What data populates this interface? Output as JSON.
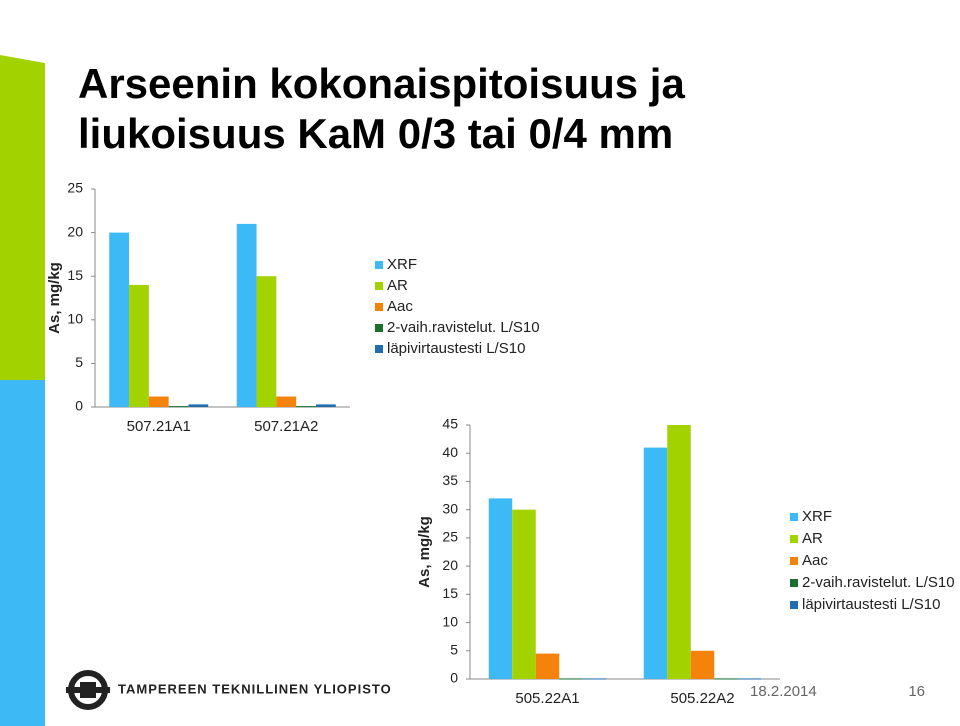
{
  "slide": {
    "title": [
      "Arseenin kokonaispitoisuus ja",
      "liukoisuus KaM 0/3 tai 0/4 mm"
    ],
    "logo_text": "TAMPEREEN TEKNILLINEN YLIOPISTO",
    "date": "18.2.2014",
    "page_number": "16"
  },
  "chart_data": [
    {
      "type": "bar",
      "y_label": "As, mg/kg",
      "categories": [
        "507.21A1",
        "507.21A2"
      ],
      "ylim": [
        0,
        25
      ],
      "yticks": [
        0,
        5,
        10,
        15,
        20,
        25
      ],
      "legend": "right",
      "series": [
        {
          "name": "XRF",
          "color": "#3dbaf5",
          "values": [
            20,
            21
          ]
        },
        {
          "name": "AR",
          "color": "#a2d300",
          "values": [
            14,
            15
          ]
        },
        {
          "name": "Aac",
          "color": "#f5820a",
          "values": [
            1.2,
            1.2
          ]
        },
        {
          "name": "2-vaih.ravistelut. L/S10",
          "color": "#1a6e2e",
          "values": [
            0.1,
            0.1
          ]
        },
        {
          "name": "läpivirtaustesti L/S10",
          "color": "#1f6eb0",
          "values": [
            0.3,
            0.3
          ]
        }
      ]
    },
    {
      "type": "bar",
      "y_label": "As, mg/kg",
      "categories": [
        "505.22A1",
        "505.22A2"
      ],
      "ylim": [
        0,
        45
      ],
      "yticks": [
        0,
        5,
        10,
        15,
        20,
        25,
        30,
        35,
        40,
        45
      ],
      "legend": "right",
      "series": [
        {
          "name": "XRF",
          "color": "#3dbaf5",
          "values": [
            32,
            41
          ]
        },
        {
          "name": "AR",
          "color": "#a2d300",
          "values": [
            30,
            45
          ]
        },
        {
          "name": "Aac",
          "color": "#f5820a",
          "values": [
            4.5,
            5
          ]
        },
        {
          "name": "2-vaih.ravistelut. L/S10",
          "color": "#1a6e2e",
          "values": [
            0.1,
            0.1
          ]
        },
        {
          "name": "läpivirtaustesti L/S10",
          "color": "#1f6eb0",
          "values": [
            0.1,
            0.1
          ]
        }
      ]
    }
  ]
}
